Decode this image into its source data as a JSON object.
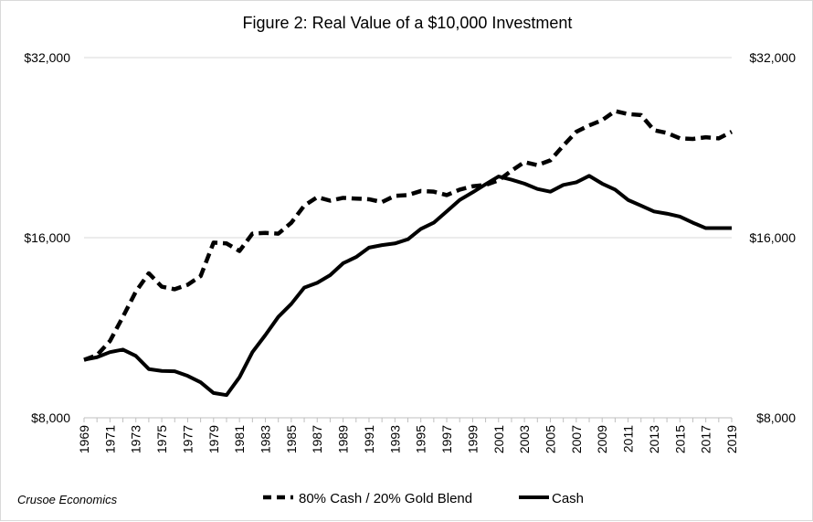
{
  "chart_data": {
    "type": "line",
    "title": "Figure 2: Real Value of a $10,000 Investment",
    "source": "Crusoe Economics",
    "y_scale": "log2",
    "ylim": [
      8000,
      32000
    ],
    "y_ticks": [
      "$8,000",
      "$16,000",
      "$32,000"
    ],
    "y_tick_values": [
      8000,
      16000,
      32000
    ],
    "secondary_y_axis": true,
    "grid": "horizontal",
    "legend_position": "bottom",
    "x_tick_labels": [
      "1969",
      "1971",
      "1973",
      "1975",
      "1977",
      "1979",
      "1981",
      "1983",
      "1985",
      "1987",
      "1989",
      "1991",
      "1993",
      "1995",
      "1997",
      "1999",
      "2001",
      "2003",
      "2005",
      "2007",
      "2009",
      "2011",
      "2013",
      "2015",
      "2017",
      "2019"
    ],
    "x": [
      1969,
      1970,
      1971,
      1972,
      1973,
      1974,
      1975,
      1976,
      1977,
      1978,
      1979,
      1980,
      1981,
      1982,
      1983,
      1984,
      1985,
      1986,
      1987,
      1988,
      1989,
      1990,
      1991,
      1992,
      1993,
      1994,
      1995,
      1996,
      1997,
      1998,
      1999,
      2000,
      2001,
      2002,
      2003,
      2004,
      2005,
      2006,
      2007,
      2008,
      2009,
      2010,
      2011,
      2012,
      2013,
      2014,
      2015,
      2016,
      2017,
      2018,
      2019
    ],
    "series": [
      {
        "name": "80% Cash / 20% Gold Blend",
        "style": "dashed",
        "color": "#000000",
        "values": [
          10000,
          10180,
          10750,
          11800,
          13000,
          13950,
          13250,
          13120,
          13350,
          13800,
          15700,
          15650,
          15200,
          16250,
          16300,
          16250,
          16950,
          18100,
          18700,
          18450,
          18650,
          18600,
          18550,
          18350,
          18800,
          18850,
          19150,
          19100,
          18850,
          19250,
          19500,
          19600,
          19950,
          20700,
          21400,
          21150,
          21550,
          22800,
          24050,
          24650,
          25150,
          26050,
          25750,
          25650,
          24200,
          23950,
          23450,
          23400,
          23550,
          23450,
          24050
        ]
      },
      {
        "name": "Cash",
        "style": "solid",
        "color": "#000000",
        "values": [
          10000,
          10100,
          10300,
          10400,
          10150,
          9650,
          9580,
          9570,
          9400,
          9170,
          8800,
          8730,
          9350,
          10300,
          11000,
          11800,
          12400,
          13200,
          13450,
          13850,
          14500,
          14850,
          15400,
          15550,
          15650,
          15900,
          16550,
          16950,
          17700,
          18500,
          19050,
          19650,
          20250,
          20000,
          19700,
          19300,
          19100,
          19600,
          19800,
          20300,
          19700,
          19250,
          18500,
          18100,
          17700,
          17550,
          17350,
          16950,
          16600,
          16600,
          16600
        ]
      }
    ]
  }
}
